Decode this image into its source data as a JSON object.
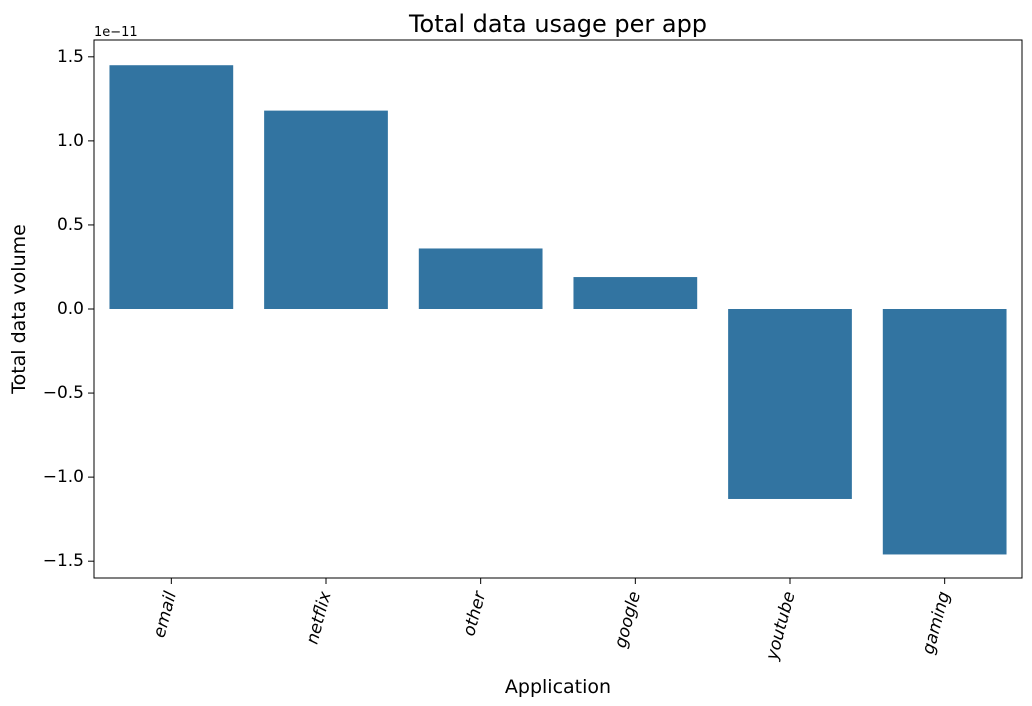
{
  "chart_data": {
    "type": "bar",
    "title": "Total data usage per app",
    "xlabel": "Application",
    "ylabel": "Total data volume",
    "offset_label": "1e−11",
    "categories": [
      "email",
      "netflix",
      "other",
      "google",
      "youtube",
      "gaming"
    ],
    "values": [
      1.45,
      1.18,
      0.36,
      0.19,
      -1.13,
      -1.46
    ],
    "value_scale": 1e-11,
    "ylim": [
      -1.6,
      1.6
    ],
    "yticks": [
      1.5,
      1.0,
      0.5,
      0.0,
      -0.5,
      -1.0,
      -1.5
    ],
    "ytick_labels": [
      "1.5",
      "1.0",
      "0.5",
      "0.0",
      "−0.5",
      "−1.0",
      "−1.5"
    ],
    "bar_color": "#3274a1",
    "grid": false,
    "xtick_rotation": "75°"
  }
}
